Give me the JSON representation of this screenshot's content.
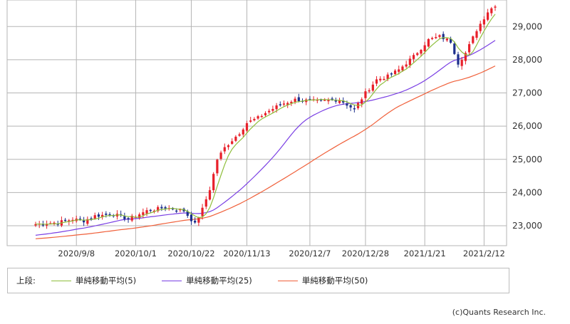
{
  "chart_data": {
    "type": "candlestick",
    "y_ticks": [
      "23,000",
      "24,000",
      "25,000",
      "26,000",
      "27,000",
      "28,000",
      "29,000"
    ],
    "y_tick_values": [
      23000,
      24000,
      25000,
      26000,
      27000,
      28000,
      29000
    ],
    "ylim": [
      22400,
      29800
    ],
    "x_ticks": [
      "2020/9/8",
      "2020/10/1",
      "2020/10/22",
      "2020/11/13",
      "2020/12/7",
      "2020/12/28",
      "2021/1/21",
      "2021/2/12"
    ],
    "x_tick_index": [
      11,
      27,
      42,
      57,
      74,
      89,
      105,
      121
    ],
    "n_days": 125,
    "grid": true,
    "legend_position": "bottom",
    "colors": {
      "up": "#e8202a",
      "down": "#1c2f8c",
      "ma5": "#8fbe3c",
      "ma25": "#7a3fe4",
      "ma50": "#f0603a",
      "grid": "#b5b5b5"
    },
    "anchors": [
      [
        0,
        23050
      ],
      [
        6,
        23100
      ],
      [
        10,
        23200
      ],
      [
        13,
        23150
      ],
      [
        16,
        23300
      ],
      [
        21,
        23350
      ],
      [
        25,
        23200
      ],
      [
        30,
        23450
      ],
      [
        35,
        23550
      ],
      [
        40,
        23450
      ],
      [
        43,
        23050
      ],
      [
        45,
        23500
      ],
      [
        47,
        24100
      ],
      [
        49,
        25000
      ],
      [
        51,
        25350
      ],
      [
        55,
        25800
      ],
      [
        57,
        26100
      ],
      [
        60,
        26250
      ],
      [
        62,
        26400
      ],
      [
        66,
        26650
      ],
      [
        70,
        26800
      ],
      [
        76,
        26750
      ],
      [
        82,
        26800
      ],
      [
        86,
        26500
      ],
      [
        89,
        27000
      ],
      [
        92,
        27400
      ],
      [
        95,
        27500
      ],
      [
        98,
        27700
      ],
      [
        102,
        28100
      ],
      [
        106,
        28600
      ],
      [
        109,
        28700
      ],
      [
        112,
        28550
      ],
      [
        114,
        27900
      ],
      [
        116,
        28200
      ],
      [
        119,
        28900
      ],
      [
        122,
        29450
      ],
      [
        124,
        29650
      ]
    ],
    "series": [
      {
        "name": "単純移動平均(5)",
        "window": 5
      },
      {
        "name": "単純移動平均(25)",
        "window": 25
      },
      {
        "name": "単純移動平均(50)",
        "window": 50
      }
    ]
  },
  "legend": {
    "prefix": "上段:",
    "items": [
      "単純移動平均(5)",
      "単純移動平均(25)",
      "単純移動平均(50)"
    ]
  },
  "credit": "(c)Quants Research Inc."
}
